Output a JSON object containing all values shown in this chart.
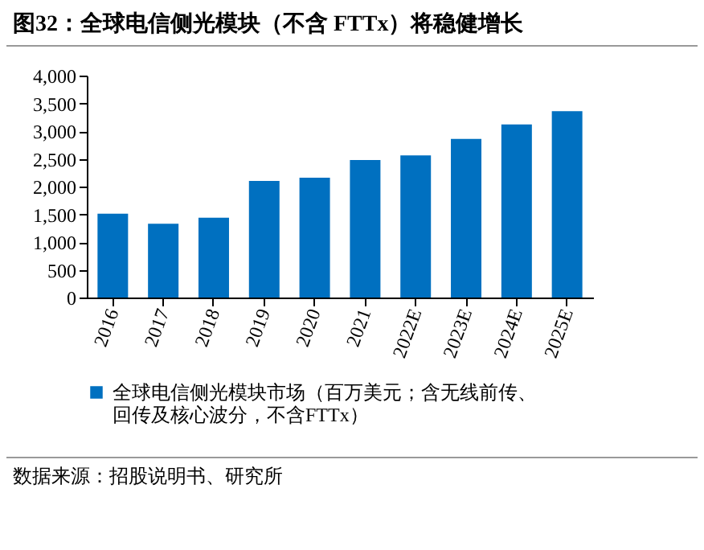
{
  "chart_data": {
    "type": "bar",
    "title": "图32：全球电信侧光模块（不含 FTTx）将稳健增长",
    "categories": [
      "2016",
      "2017",
      "2018",
      "2019",
      "2020",
      "2021",
      "2022E",
      "2023E",
      "2024E",
      "2025E"
    ],
    "series": [
      {
        "name": "全球电信侧光模块市场（百万美元；含无线前传、回传及核心波分，不含FTTx）",
        "color": "#0070c0",
        "values": [
          1510,
          1330,
          1440,
          2100,
          2160,
          2480,
          2560,
          2860,
          3120,
          3360
        ]
      }
    ],
    "ylim": [
      0,
      4000
    ],
    "yticks": [
      0,
      500,
      {
        "value": 1000,
        "label": "1,000"
      },
      {
        "value": 1500,
        "label": "1,500"
      },
      {
        "value": 2000,
        "label": "2,000"
      },
      {
        "value": 2500,
        "label": "2,500"
      },
      {
        "value": 3000,
        "label": "3,000"
      },
      {
        "value": 3500,
        "label": "3,500"
      },
      {
        "value": 4000,
        "label": "4,000"
      }
    ],
    "grid": false,
    "legend": "bottom",
    "annotations": [
      "数据来源：招股说明书、研究所"
    ]
  }
}
